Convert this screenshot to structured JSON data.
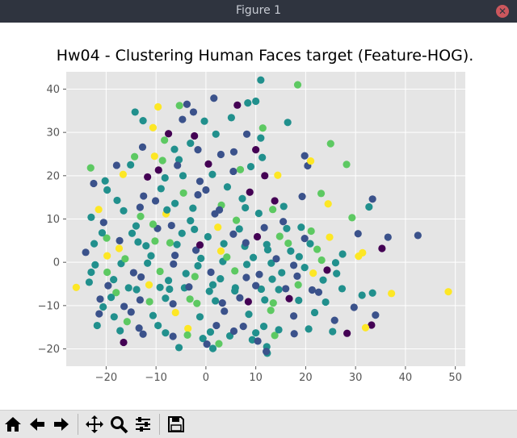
{
  "window": {
    "title": "Figure 1"
  },
  "toolbar": {
    "buttons": [
      "home-icon",
      "back-arrow-icon",
      "forward-arrow-icon",
      "pan-icon",
      "zoom-icon",
      "configure-subplots-icon",
      "save-icon"
    ]
  },
  "colors": {
    "titlebar": "#2f343f",
    "plot_bg": "#e5e5e5",
    "grid": "#ffffff",
    "toolbar_bg": "#e6e6e6"
  },
  "chart_data": {
    "type": "scatter",
    "title": "Hw04 - Clustering Human Faces target (Feature-HOG).",
    "xlabel": "",
    "ylabel": "",
    "xlim": [
      -28,
      52
    ],
    "ylim": [
      -24,
      44
    ],
    "xticks": [
      -20,
      -10,
      0,
      10,
      20,
      30,
      40,
      50
    ],
    "yticks": [
      -20,
      -10,
      0,
      10,
      20,
      30,
      40
    ],
    "grid": true,
    "colormap": "viridis",
    "cluster_colors": [
      "#440154",
      "#3b528b",
      "#21908d",
      "#5dc962",
      "#fde725"
    ],
    "points": [
      [
        -22.5,
        18.2,
        1
      ],
      [
        -23.1,
        21.8,
        3
      ],
      [
        -20.2,
        18.8,
        2
      ],
      [
        -14.2,
        34.7,
        2
      ],
      [
        -12.6,
        32.7,
        2
      ],
      [
        -9.6,
        35.9,
        4
      ],
      [
        -7.5,
        29.7,
        0
      ],
      [
        -5.3,
        36.2,
        3
      ],
      [
        -4.7,
        33.0,
        1
      ],
      [
        -3.8,
        36.5,
        1
      ],
      [
        -2.5,
        34.7,
        1
      ],
      [
        1.6,
        37.9,
        1
      ],
      [
        6.3,
        36.3,
        0
      ],
      [
        8.4,
        36.8,
        2
      ],
      [
        10.0,
        37.2,
        2
      ],
      [
        11.0,
        42.1,
        2
      ],
      [
        18.4,
        41.0,
        3
      ],
      [
        16.4,
        32.3,
        2
      ],
      [
        11.4,
        31.0,
        3
      ],
      [
        11.0,
        28.7,
        2
      ],
      [
        10.0,
        26.0,
        0
      ],
      [
        8.2,
        29.6,
        1
      ],
      [
        5.6,
        25.5,
        1
      ],
      [
        2.0,
        29.6,
        2
      ],
      [
        -0.3,
        32.6,
        2
      ],
      [
        -2.3,
        29.2,
        0
      ],
      [
        -3.1,
        27.5,
        2
      ],
      [
        -5.4,
        23.7,
        2
      ],
      [
        -8.7,
        23.5,
        3
      ],
      [
        -10.3,
        24.5,
        4
      ],
      [
        -12.7,
        26.6,
        1
      ],
      [
        -14.3,
        24.4,
        3
      ],
      [
        -17.9,
        22.4,
        1
      ],
      [
        -19.8,
        16.7,
        2
      ],
      [
        -21.5,
        12.2,
        4
      ],
      [
        -23.0,
        10.4,
        2
      ],
      [
        -16.6,
        20.3,
        4
      ],
      [
        -15.1,
        22.5,
        2
      ],
      [
        -11.7,
        19.7,
        0
      ],
      [
        -8.2,
        19.5,
        2
      ],
      [
        -4.6,
        20.0,
        2
      ],
      [
        -1.2,
        18.7,
        1
      ],
      [
        0.5,
        22.7,
        0
      ],
      [
        3.0,
        24.9,
        1
      ],
      [
        5.5,
        21.0,
        1
      ],
      [
        9.0,
        22.1,
        2
      ],
      [
        11.8,
        20.0,
        0
      ],
      [
        14.4,
        20.1,
        4
      ],
      [
        19.8,
        24.6,
        1
      ],
      [
        20.4,
        22.3,
        1
      ],
      [
        21.0,
        23.4,
        4
      ],
      [
        25.0,
        27.4,
        3
      ],
      [
        28.2,
        22.6,
        3
      ],
      [
        33.4,
        14.6,
        1
      ],
      [
        32.7,
        12.8,
        2
      ],
      [
        29.3,
        10.3,
        3
      ],
      [
        24.5,
        13.5,
        4
      ],
      [
        23.1,
        15.9,
        3
      ],
      [
        19.3,
        15.2,
        1
      ],
      [
        15.6,
        12.9,
        2
      ],
      [
        13.8,
        14.2,
        0
      ],
      [
        7.3,
        14.7,
        2
      ],
      [
        3.1,
        13.2,
        3
      ],
      [
        -1.6,
        15.6,
        1
      ],
      [
        -6.2,
        13.6,
        2
      ],
      [
        -10.1,
        14.2,
        1
      ],
      [
        -13.1,
        10.6,
        3
      ],
      [
        -16.5,
        11.9,
        2
      ],
      [
        -20.5,
        9.2,
        1
      ],
      [
        -22.4,
        4.3,
        2
      ],
      [
        -19.9,
        5.6,
        3
      ],
      [
        -17.4,
        3.2,
        4
      ],
      [
        -14.8,
        6.7,
        2
      ],
      [
        -12.0,
        3.8,
        2
      ],
      [
        -9.7,
        7.8,
        1
      ],
      [
        -7.2,
        4.5,
        3
      ],
      [
        -4.8,
        6.7,
        2
      ],
      [
        -2.0,
        2.8,
        1
      ],
      [
        0.4,
        5.9,
        2
      ],
      [
        3.0,
        2.6,
        4
      ],
      [
        5.5,
        6.5,
        1
      ],
      [
        7.8,
        3.7,
        2
      ],
      [
        10.3,
        5.9,
        0
      ],
      [
        12.4,
        2.9,
        2
      ],
      [
        14.8,
        6.0,
        3
      ],
      [
        17.0,
        2.6,
        2
      ],
      [
        19.8,
        5.5,
        1
      ],
      [
        22.3,
        3.0,
        3
      ],
      [
        24.8,
        5.8,
        4
      ],
      [
        27.4,
        1.9,
        2
      ],
      [
        30.6,
        1.4,
        4
      ],
      [
        31.4,
        2.2,
        4
      ],
      [
        30.5,
        6.6,
        1
      ],
      [
        36.5,
        5.8,
        1
      ],
      [
        42.5,
        6.2,
        1
      ],
      [
        35.3,
        3.2,
        0
      ],
      [
        26.0,
        -0.1,
        2
      ],
      [
        23.2,
        0.5,
        3
      ],
      [
        21.5,
        -2.5,
        4
      ],
      [
        19.8,
        -1.2,
        2
      ],
      [
        17.6,
        -0.7,
        1
      ],
      [
        15.2,
        -2.4,
        2
      ],
      [
        13.1,
        -0.2,
        2
      ],
      [
        10.7,
        -2.8,
        1
      ],
      [
        8.2,
        -0.5,
        2
      ],
      [
        5.8,
        -2.0,
        3
      ],
      [
        3.4,
        0.2,
        2
      ],
      [
        1.0,
        -2.3,
        1
      ],
      [
        -1.6,
        -0.8,
        2
      ],
      [
        -4.0,
        -2.6,
        2
      ],
      [
        -6.5,
        -0.4,
        1
      ],
      [
        -9.2,
        -2.1,
        3
      ],
      [
        -11.7,
        -0.2,
        2
      ],
      [
        -14.5,
        -2.4,
        1
      ],
      [
        -17.0,
        -0.3,
        2
      ],
      [
        -19.8,
        -2.3,
        3
      ],
      [
        -22.2,
        -0.6,
        2
      ],
      [
        -24.1,
        2.3,
        1
      ],
      [
        -26.0,
        -5.8,
        4
      ],
      [
        -23.4,
        -4.6,
        2
      ],
      [
        -21.2,
        -8.5,
        1
      ],
      [
        -20.6,
        -10.3,
        2
      ],
      [
        -18.0,
        -7.0,
        3
      ],
      [
        -16.4,
        -10.2,
        1
      ],
      [
        -13.9,
        -6.3,
        2
      ],
      [
        -11.3,
        -9.1,
        3
      ],
      [
        -9.2,
        -5.8,
        2
      ],
      [
        -6.6,
        -9.6,
        1
      ],
      [
        -4.3,
        -5.9,
        2
      ],
      [
        -1.8,
        -9.5,
        3
      ],
      [
        0.7,
        -6.7,
        2
      ],
      [
        3.3,
        -9.4,
        1
      ],
      [
        5.9,
        -5.9,
        2
      ],
      [
        8.5,
        -9.1,
        0
      ],
      [
        11.1,
        -6.2,
        2
      ],
      [
        13.5,
        -9.4,
        3
      ],
      [
        16.0,
        -6.1,
        1
      ],
      [
        18.6,
        -8.8,
        2
      ],
      [
        21.3,
        -6.4,
        1
      ],
      [
        24.0,
        -9.2,
        2
      ],
      [
        27.3,
        -6.1,
        2
      ],
      [
        29.7,
        -10.4,
        1
      ],
      [
        31.3,
        -7.6,
        2
      ],
      [
        33.4,
        -7.1,
        2
      ],
      [
        37.2,
        -7.2,
        4
      ],
      [
        48.6,
        -6.8,
        4
      ],
      [
        34.0,
        -12.2,
        1
      ],
      [
        33.2,
        -14.5,
        0
      ],
      [
        32.0,
        -15.1,
        4
      ],
      [
        28.3,
        -16.4,
        0
      ],
      [
        25.4,
        -16.0,
        2
      ],
      [
        25.8,
        -13.4,
        1
      ],
      [
        20.6,
        -15.4,
        2
      ],
      [
        17.7,
        -16.5,
        1
      ],
      [
        13.8,
        -16.9,
        3
      ],
      [
        11.6,
        -14.8,
        2
      ],
      [
        9.3,
        -17.9,
        2
      ],
      [
        7.5,
        -14.8,
        1
      ],
      [
        4.8,
        -17.0,
        2
      ],
      [
        2.1,
        -14.6,
        1
      ],
      [
        -0.6,
        -17.6,
        2
      ],
      [
        -3.6,
        -15.3,
        4
      ],
      [
        -6.6,
        -17.1,
        1
      ],
      [
        -9.6,
        -14.6,
        2
      ],
      [
        -12.6,
        -16.6,
        1
      ],
      [
        -15.8,
        -13.7,
        3
      ],
      [
        -18.4,
        -12.6,
        2
      ],
      [
        -21.4,
        -11.9,
        1
      ],
      [
        -21.8,
        -14.6,
        2
      ],
      [
        -16.5,
        -18.5,
        0
      ],
      [
        -5.4,
        -19.7,
        2
      ],
      [
        0.2,
        -18.9,
        1
      ],
      [
        1.4,
        -19.9,
        2
      ],
      [
        2.6,
        -18.8,
        3
      ],
      [
        10.4,
        -18.2,
        1
      ],
      [
        12.2,
        -19.5,
        2
      ],
      [
        12.3,
        -21.0,
        2
      ],
      [
        12.1,
        -20.6,
        1
      ],
      [
        24.3,
        -1.8,
        0
      ],
      [
        26.2,
        -2.6,
        2
      ],
      [
        -12.5,
        15.3,
        1
      ],
      [
        -8.0,
        11.2,
        4
      ],
      [
        -3.1,
        9.6,
        2
      ],
      [
        1.8,
        11.2,
        1
      ],
      [
        6.1,
        9.7,
        3
      ],
      [
        10.6,
        11.3,
        2
      ],
      [
        15.5,
        9.4,
        1
      ],
      [
        19.1,
        8.1,
        2
      ],
      [
        -19.8,
        1.5,
        4
      ],
      [
        -16.2,
        0.8,
        3
      ],
      [
        -11.0,
        1.5,
        2
      ],
      [
        -6.2,
        1.6,
        1
      ],
      [
        -1.0,
        0.9,
        2
      ],
      [
        4.2,
        1.2,
        3
      ],
      [
        9.5,
        1.1,
        2
      ],
      [
        14.1,
        0.8,
        1
      ],
      [
        18.7,
        1.3,
        2
      ],
      [
        -18.5,
        -4.0,
        2
      ],
      [
        -13.0,
        -3.4,
        1
      ],
      [
        -7.5,
        -4.2,
        2
      ],
      [
        -2.2,
        -3.3,
        3
      ],
      [
        2.9,
        -3.8,
        2
      ],
      [
        8.1,
        -3.5,
        1
      ],
      [
        13.3,
        -3.9,
        2
      ],
      [
        18.3,
        -3.2,
        1
      ],
      [
        23.5,
        -4.1,
        2
      ],
      [
        -15.0,
        -11.5,
        1
      ],
      [
        -10.6,
        -12.3,
        2
      ],
      [
        -6.1,
        -11.6,
        4
      ],
      [
        -1.2,
        -12.6,
        2
      ],
      [
        3.7,
        -11.3,
        1
      ],
      [
        8.6,
        -12.0,
        2
      ],
      [
        13.0,
        -11.1,
        3
      ],
      [
        17.6,
        -12.4,
        1
      ],
      [
        21.8,
        -11.6,
        2
      ],
      [
        -9.0,
        17.0,
        2
      ],
      [
        -4.5,
        16.0,
        3
      ],
      [
        0.0,
        16.7,
        1
      ],
      [
        4.3,
        17.4,
        2
      ],
      [
        8.8,
        16.2,
        0
      ],
      [
        -14.0,
        8.4,
        2
      ],
      [
        -10.6,
        8.8,
        3
      ],
      [
        -6.9,
        8.5,
        1
      ],
      [
        -2.3,
        7.6,
        2
      ],
      [
        2.4,
        8.1,
        4
      ],
      [
        6.7,
        7.7,
        2
      ],
      [
        11.7,
        8.0,
        1
      ],
      [
        16.2,
        7.8,
        2
      ],
      [
        21.1,
        7.2,
        3
      ],
      [
        -20.8,
        6.8,
        2
      ],
      [
        -17.3,
        5.0,
        1
      ],
      [
        -13.6,
        4.7,
        2
      ],
      [
        -10.2,
        4.9,
        3
      ],
      [
        -5.8,
        4.1,
        2
      ],
      [
        -1.2,
        4.0,
        0
      ],
      [
        3.6,
        4.3,
        2
      ],
      [
        8.0,
        4.5,
        1
      ],
      [
        12.2,
        4.1,
        2
      ],
      [
        16.5,
        4.4,
        3
      ],
      [
        20.9,
        4.3,
        2
      ],
      [
        -23.0,
        -2.3,
        2
      ],
      [
        -19.6,
        -5.4,
        1
      ],
      [
        -15.5,
        -5.9,
        2
      ],
      [
        -11.4,
        -5.2,
        4
      ],
      [
        -7.3,
        -6.2,
        2
      ],
      [
        -3.4,
        -5.7,
        1
      ],
      [
        1.4,
        -5.2,
        2
      ],
      [
        5.8,
        -6.6,
        2
      ],
      [
        10.0,
        -5.4,
        1
      ],
      [
        14.6,
        -6.3,
        2
      ],
      [
        18.5,
        -5.2,
        3
      ],
      [
        22.6,
        -6.9,
        1
      ],
      [
        -19.0,
        -8.1,
        2
      ],
      [
        -13.2,
        -8.7,
        1
      ],
      [
        -8.1,
        -8.3,
        2
      ],
      [
        -3.2,
        -8.5,
        3
      ],
      [
        1.9,
        -8.9,
        2
      ],
      [
        6.8,
        -8.2,
        1
      ],
      [
        11.8,
        -8.7,
        2
      ],
      [
        16.7,
        -8.4,
        0
      ],
      [
        -17.2,
        -15.8,
        2
      ],
      [
        -13.4,
        -15.2,
        1
      ],
      [
        -8.1,
        -16.3,
        2
      ],
      [
        -3.7,
        -16.8,
        3
      ],
      [
        0.9,
        -16.1,
        2
      ],
      [
        5.6,
        -15.9,
        1
      ],
      [
        10.0,
        -16.3,
        2
      ],
      [
        14.6,
        -15.6,
        2
      ],
      [
        -17.8,
        14.3,
        2
      ],
      [
        -13.2,
        12.7,
        1
      ],
      [
        -7.8,
        12.1,
        2
      ],
      [
        -2.6,
        12.5,
        2
      ],
      [
        2.7,
        12.1,
        1
      ],
      [
        7.9,
        12.6,
        2
      ],
      [
        13.4,
        12.2,
        3
      ],
      [
        -9.5,
        21.3,
        0
      ],
      [
        -5.7,
        22.4,
        1
      ],
      [
        1.3,
        20.3,
        2
      ],
      [
        6.9,
        21.4,
        3
      ],
      [
        11.3,
        24.2,
        2
      ],
      [
        -1.6,
        26.0,
        1
      ],
      [
        -6.3,
        26.1,
        2
      ],
      [
        -8.3,
        28.2,
        3
      ],
      [
        -10.6,
        31.1,
        4
      ],
      [
        5.1,
        33.4,
        2
      ]
    ]
  }
}
